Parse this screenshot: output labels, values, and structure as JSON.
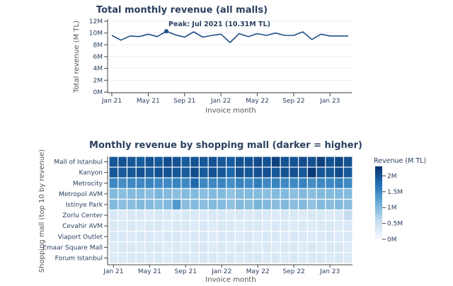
{
  "chart_data": [
    {
      "type": "line",
      "title": "Total monthly revenue (all malls)",
      "xlabel": "Invoice month",
      "ylabel": "Total revenue (M TL)",
      "ylim": [
        0,
        12
      ],
      "y_ticks": [
        "0M",
        "2M",
        "4M",
        "6M",
        "8M",
        "10M",
        "12M"
      ],
      "x_ticks": [
        "Jan 21",
        "May 21",
        "Sep 21",
        "Jan 22",
        "May 22",
        "Sep 22",
        "Jan 23"
      ],
      "x": [
        "2021-01",
        "2021-02",
        "2021-03",
        "2021-04",
        "2021-05",
        "2021-06",
        "2021-07",
        "2021-08",
        "2021-09",
        "2021-10",
        "2021-11",
        "2021-12",
        "2022-01",
        "2022-02",
        "2022-03",
        "2022-04",
        "2022-05",
        "2022-06",
        "2022-07",
        "2022-08",
        "2022-09",
        "2022-10",
        "2022-11",
        "2022-12",
        "2023-01",
        "2023-02",
        "2023-03"
      ],
      "values": [
        9.6,
        8.8,
        9.5,
        9.4,
        9.8,
        9.4,
        10.31,
        9.7,
        9.3,
        10.2,
        9.3,
        9.6,
        9.8,
        8.4,
        9.9,
        9.4,
        9.9,
        9.6,
        10.0,
        9.6,
        9.6,
        10.2,
        8.9,
        9.8,
        9.5,
        9.5,
        9.5
      ],
      "annotation": "Peak: Jul 2021 (10.31M TL)",
      "peak_index": 6,
      "line_color": "#1f4e87"
    },
    {
      "type": "heatmap",
      "title": "Monthly revenue by shopping mall (darker = higher)",
      "xlabel": "Invoice month",
      "ylabel": "Shopping mall (top 10 by revenue)",
      "x_ticks": [
        "Jan 21",
        "May 21",
        "Sep 21",
        "Jan 22",
        "May 22",
        "Sep 22",
        "Jan 23"
      ],
      "colorbar_title": "Revenue (M TL)",
      "colorbar_ticks": [
        "0M",
        "0.5M",
        "1M",
        "1.5M",
        "2M"
      ],
      "zmax": 2.3,
      "rows": [
        {
          "name": "Mall of Istanbul",
          "values": [
            1.95,
            2.0,
            1.95,
            1.9,
            2.0,
            1.95,
            2.05,
            2.0,
            1.9,
            2.0,
            1.95,
            2.0,
            1.95,
            1.9,
            2.0,
            2.0,
            2.05,
            2.0,
            2.15,
            2.0,
            2.0,
            2.05,
            2.0,
            2.15,
            2.0,
            2.1,
            2.0
          ]
        },
        {
          "name": "Kanyon",
          "values": [
            1.95,
            1.9,
            1.95,
            2.0,
            1.9,
            2.0,
            2.0,
            1.95,
            1.9,
            2.05,
            1.9,
            2.0,
            1.95,
            1.8,
            2.0,
            1.95,
            2.0,
            2.0,
            1.95,
            2.0,
            2.0,
            1.95,
            2.2,
            1.95,
            1.95,
            2.05,
            1.95
          ]
        },
        {
          "name": "Metrocity",
          "values": [
            1.5,
            1.45,
            1.5,
            1.5,
            1.55,
            1.5,
            1.5,
            1.55,
            1.5,
            1.8,
            1.5,
            1.5,
            1.55,
            1.45,
            1.55,
            1.5,
            1.6,
            1.5,
            1.55,
            1.5,
            1.5,
            1.55,
            1.45,
            1.5,
            1.5,
            1.55,
            1.5
          ]
        },
        {
          "name": "Metropol AVM",
          "values": [
            1.0,
            0.95,
            1.0,
            1.0,
            0.95,
            1.05,
            1.0,
            0.95,
            1.0,
            1.0,
            0.95,
            1.0,
            1.0,
            0.9,
            1.0,
            1.0,
            1.0,
            0.95,
            1.0,
            1.0,
            0.95,
            1.0,
            0.95,
            1.0,
            1.0,
            1.0,
            1.0
          ]
        },
        {
          "name": "Istinye Park",
          "values": [
            1.0,
            0.95,
            0.95,
            1.0,
            1.0,
            0.95,
            1.0,
            1.35,
            0.95,
            1.0,
            0.95,
            1.0,
            1.0,
            0.9,
            1.0,
            0.95,
            1.05,
            1.0,
            0.95,
            1.0,
            0.95,
            1.0,
            0.9,
            1.0,
            0.95,
            1.0,
            0.95
          ]
        },
        {
          "name": "Zorlu Center",
          "values": [
            0.35,
            0.3,
            0.35,
            0.35,
            0.3,
            0.35,
            0.35,
            0.3,
            0.35,
            0.35,
            0.3,
            0.35,
            0.35,
            0.3,
            0.35,
            0.3,
            0.35,
            0.35,
            0.3,
            0.35,
            0.35,
            0.3,
            0.35,
            0.35,
            0.3,
            0.35,
            0.55
          ]
        },
        {
          "name": "Cevahir AVM",
          "values": [
            0.35,
            0.3,
            0.35,
            0.3,
            0.35,
            0.35,
            0.3,
            0.35,
            0.35,
            0.3,
            0.35,
            0.3,
            0.35,
            0.35,
            0.3,
            0.35,
            0.35,
            0.3,
            0.35,
            0.35,
            0.3,
            0.35,
            0.3,
            0.35,
            0.35,
            0.3,
            0.35
          ]
        },
        {
          "name": "Viaport Outlet",
          "values": [
            0.35,
            0.35,
            0.3,
            0.35,
            0.35,
            0.3,
            0.35,
            0.35,
            0.3,
            0.35,
            0.35,
            0.3,
            0.35,
            0.35,
            0.3,
            0.35,
            0.3,
            0.35,
            0.35,
            0.3,
            0.35,
            0.35,
            0.3,
            0.35,
            0.35,
            0.3,
            0.35
          ]
        },
        {
          "name": "Emaar Square Mall",
          "values": [
            0.3,
            0.35,
            0.35,
            0.3,
            0.35,
            0.35,
            0.3,
            0.35,
            0.3,
            0.35,
            0.35,
            0.3,
            0.35,
            0.3,
            0.35,
            0.35,
            0.3,
            0.35,
            0.3,
            0.35,
            0.35,
            0.3,
            0.35,
            0.3,
            0.35,
            0.35,
            0.3
          ]
        },
        {
          "name": "Forum Istanbul",
          "values": [
            0.3,
            0.3,
            0.35,
            0.35,
            0.3,
            0.35,
            0.3,
            0.35,
            0.35,
            0.3,
            0.35,
            0.35,
            0.3,
            0.35,
            0.3,
            0.35,
            0.35,
            0.3,
            0.35,
            0.3,
            0.35,
            0.3,
            0.35,
            0.35,
            0.3,
            0.35,
            0.3
          ]
        }
      ],
      "colorscale": [
        "#f7fbff",
        "#c6dbef",
        "#6baed6",
        "#2171b5",
        "#08306b"
      ]
    }
  ]
}
